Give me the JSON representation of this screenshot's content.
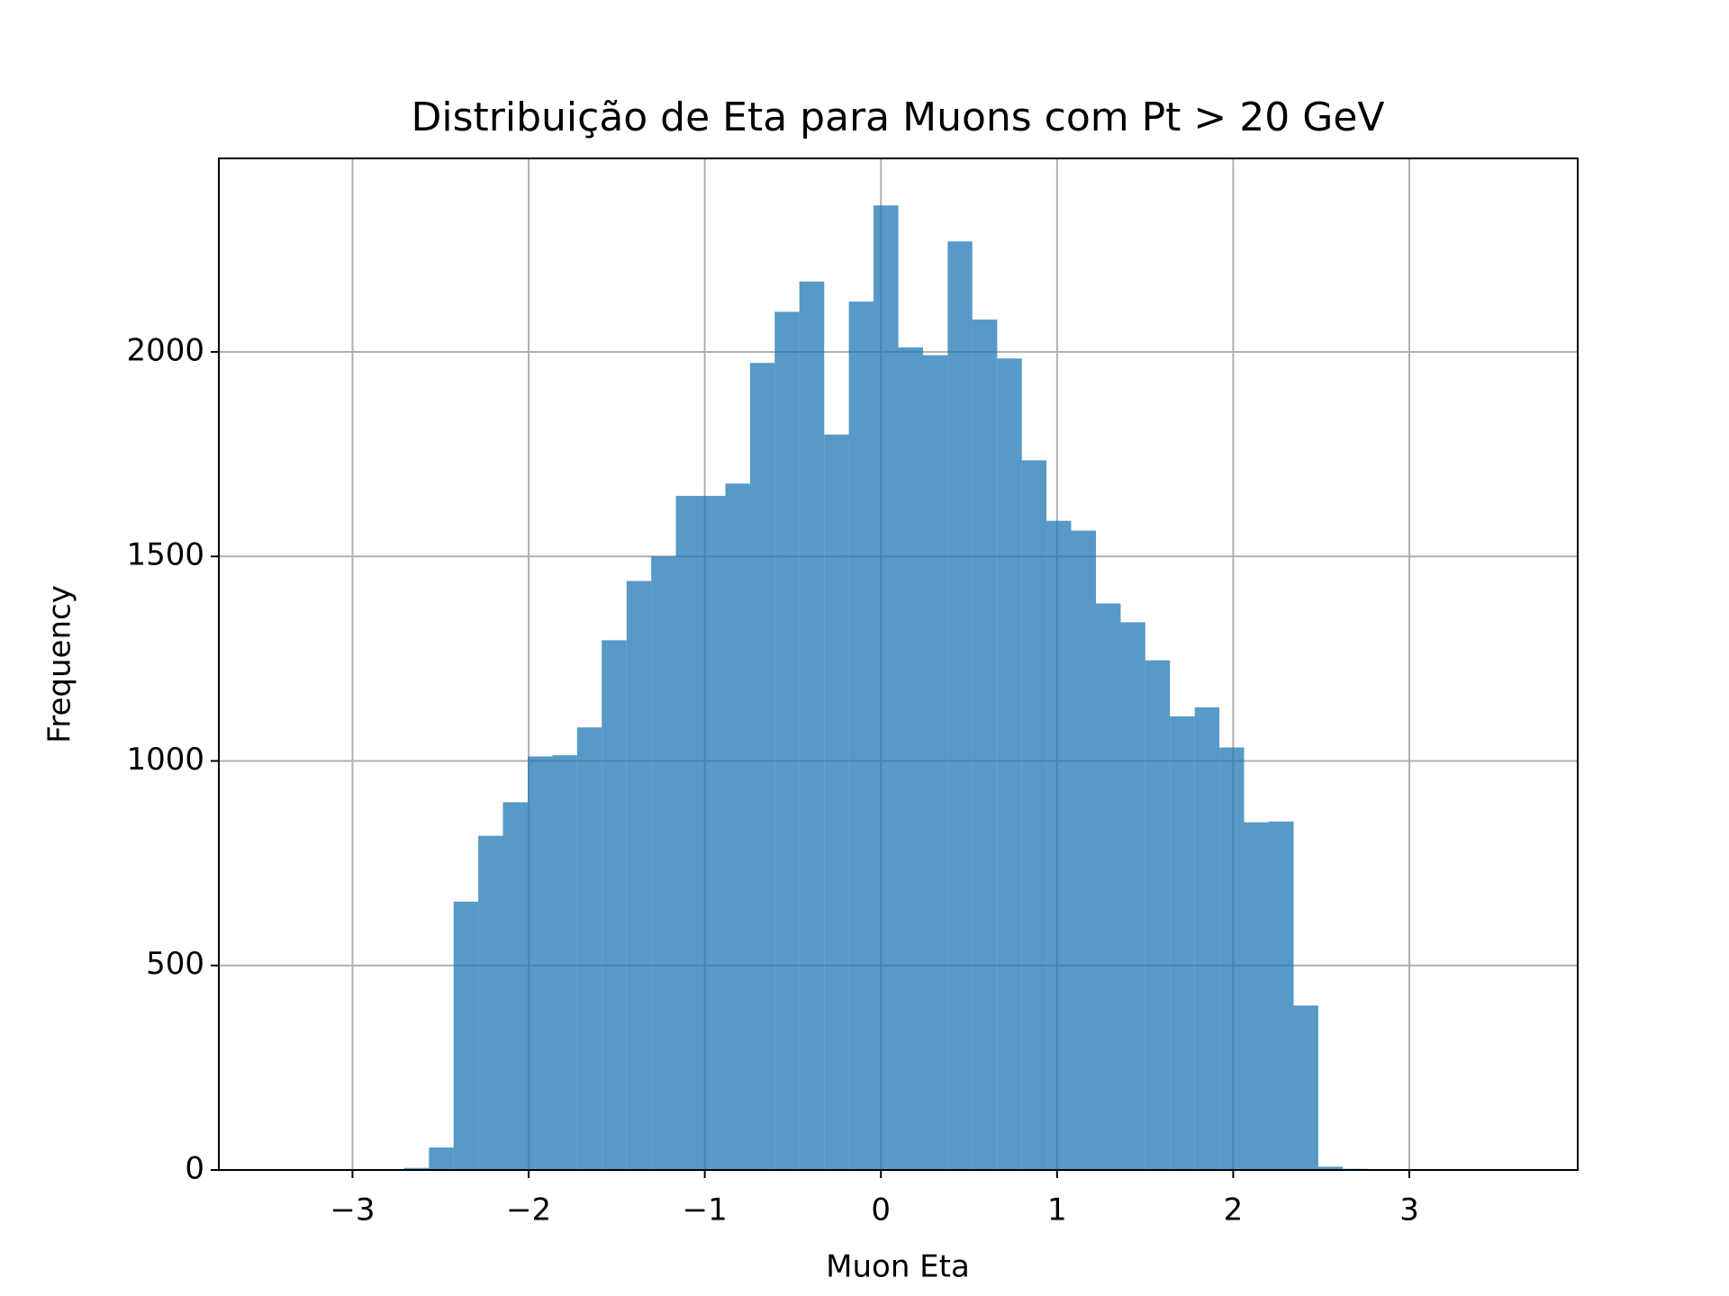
{
  "chart_data": {
    "type": "histogram",
    "title": "Distribuição de Eta para Muons com Pt > 20 GeV",
    "xlabel": "Muon Eta",
    "ylabel": "Frequency",
    "bins": [
      -3.408,
      -3.268,
      -3.127,
      -2.987,
      -2.847,
      -2.707,
      -2.566,
      -2.426,
      -2.286,
      -2.146,
      -2.005,
      -1.865,
      -1.725,
      -1.585,
      -1.444,
      -1.304,
      -1.164,
      -1.024,
      -0.883,
      -0.743,
      -0.603,
      -0.463,
      -0.322,
      -0.182,
      -0.042,
      0.099,
      0.239,
      0.379,
      0.519,
      0.66,
      0.8,
      0.94,
      1.08,
      1.221,
      1.361,
      1.501,
      1.641,
      1.782,
      1.922,
      2.062,
      2.202,
      2.343,
      2.483,
      2.623,
      2.764,
      2.904,
      3.044,
      3.184,
      3.325,
      3.465,
      3.605
    ],
    "values": [
      0,
      0,
      0,
      0,
      2,
      5,
      55,
      656,
      817,
      899,
      1011,
      1014,
      1082,
      1295,
      1440,
      1500,
      1648,
      1648,
      1678,
      1973,
      2098,
      2172,
      1798,
      2123,
      2358,
      2011,
      1992,
      2270,
      2079,
      1984,
      1735,
      1587,
      1563,
      1385,
      1339,
      1246,
      1109,
      1131,
      1033,
      850,
      852,
      402,
      8,
      3,
      2,
      0,
      0,
      0,
      0,
      0
    ],
    "color": "#1f77b4",
    "alpha": 0.75,
    "xlim": [
      -3.759,
      3.956
    ],
    "xticks": [
      {
        "value": -3,
        "label": "−3"
      },
      {
        "value": -2,
        "label": "−2"
      },
      {
        "value": -1,
        "label": "−1"
      },
      0,
      1,
      2,
      3
    ],
    "ylim": [
      0,
      2473
    ],
    "yticks": [
      0,
      500,
      1000,
      1500,
      2000
    ],
    "grid": true
  }
}
